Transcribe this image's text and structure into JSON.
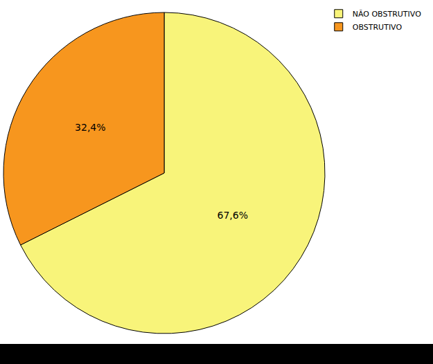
{
  "chart_data": {
    "type": "pie",
    "categories": [
      "NÃO OBSTRUTIVO",
      "OBSTRUTIVO"
    ],
    "values": [
      67.6,
      32.4
    ],
    "value_labels": [
      "67,6%",
      "32,4%"
    ],
    "colors": [
      "#f8f47a",
      "#f7961e"
    ],
    "data_labels": true,
    "legend": "top right"
  }
}
